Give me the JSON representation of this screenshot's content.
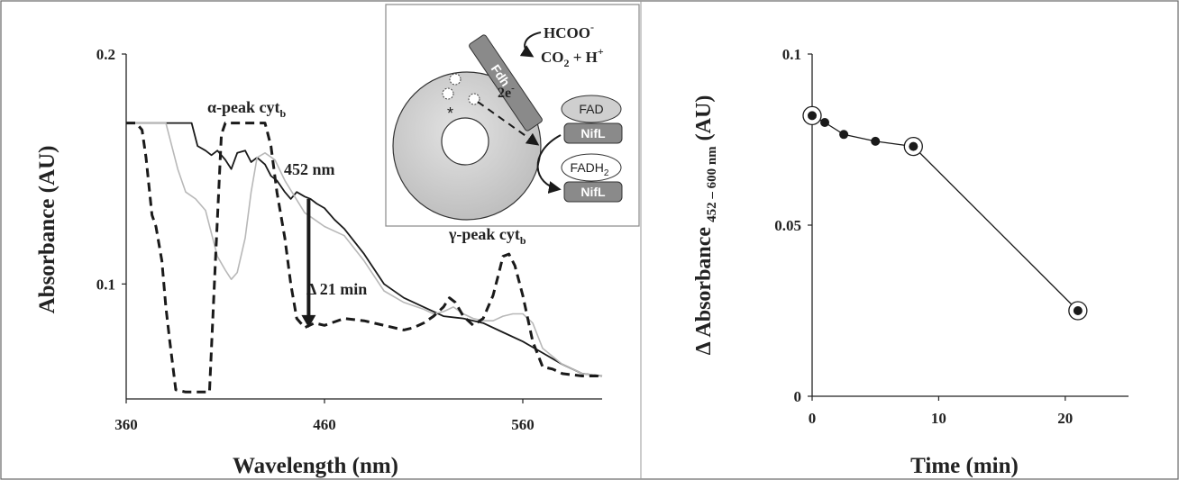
{
  "chart_data": [
    {
      "type": "line",
      "xlabel": "Wavelength (nm)",
      "ylabel": "Absorbance (AU)",
      "xlim": [
        360,
        600
      ],
      "ylim": [
        0.05,
        0.2
      ],
      "x_ticks": [
        {
          "v": 360,
          "label": "360"
        },
        {
          "v": 460,
          "label": "460"
        },
        {
          "v": 560,
          "label": "560"
        }
      ],
      "y_ticks": [
        {
          "v": 0.1,
          "label": "0.1"
        },
        {
          "v": 0.2,
          "label": "0.2"
        }
      ],
      "grid": false,
      "series": [
        {
          "style": "solid-black",
          "color": "#1a1a1a",
          "x": [
            360,
            370,
            380,
            390,
            393,
            396,
            400,
            403,
            406,
            410,
            413,
            416,
            420,
            423,
            426,
            430,
            433,
            436,
            440,
            443,
            446,
            450,
            453,
            456,
            460,
            465,
            470,
            480,
            490,
            500,
            510,
            520,
            530,
            540,
            550,
            560,
            570,
            580,
            590,
            600
          ],
          "y": [
            0.17,
            0.17,
            0.17,
            0.17,
            0.17,
            0.16,
            0.158,
            0.156,
            0.158,
            0.154,
            0.15,
            0.157,
            0.158,
            0.153,
            0.155,
            0.152,
            0.147,
            0.145,
            0.14,
            0.137,
            0.14,
            0.138,
            0.137,
            0.135,
            0.133,
            0.128,
            0.124,
            0.113,
            0.1,
            0.094,
            0.09,
            0.086,
            0.085,
            0.083,
            0.079,
            0.075,
            0.07,
            0.065,
            0.061,
            0.06
          ]
        },
        {
          "style": "solid-gray",
          "color": "#b8b8b8",
          "x": [
            360,
            370,
            380,
            383,
            386,
            390,
            395,
            400,
            403,
            406,
            410,
            413,
            416,
            420,
            423,
            426,
            430,
            435,
            440,
            445,
            450,
            455,
            460,
            470,
            480,
            490,
            500,
            510,
            515,
            520,
            525,
            530,
            535,
            540,
            545,
            550,
            555,
            560,
            565,
            570,
            580,
            590,
            600
          ],
          "y": [
            0.17,
            0.17,
            0.17,
            0.16,
            0.15,
            0.14,
            0.137,
            0.132,
            0.122,
            0.112,
            0.106,
            0.102,
            0.105,
            0.12,
            0.14,
            0.155,
            0.157,
            0.154,
            0.145,
            0.138,
            0.131,
            0.128,
            0.125,
            0.121,
            0.11,
            0.097,
            0.092,
            0.089,
            0.087,
            0.088,
            0.09,
            0.087,
            0.085,
            0.084,
            0.084,
            0.086,
            0.087,
            0.087,
            0.083,
            0.072,
            0.065,
            0.061,
            0.06
          ]
        },
        {
          "style": "dashed-black",
          "color": "#1a1a1a",
          "x": [
            360,
            365,
            368,
            370,
            373,
            375,
            378,
            380,
            382,
            385,
            390,
            395,
            400,
            402,
            405,
            408,
            410,
            415,
            420,
            425,
            430,
            433,
            436,
            440,
            443,
            446,
            450,
            455,
            460,
            470,
            480,
            490,
            500,
            505,
            510,
            515,
            520,
            523,
            526,
            530,
            535,
            540,
            545,
            548,
            550,
            553,
            556,
            560,
            565,
            570,
            575,
            580,
            590,
            600
          ],
          "y": [
            0.17,
            0.17,
            0.167,
            0.155,
            0.13,
            0.125,
            0.11,
            0.09,
            0.075,
            0.054,
            0.053,
            0.053,
            0.053,
            0.053,
            0.11,
            0.165,
            0.17,
            0.17,
            0.17,
            0.17,
            0.17,
            0.16,
            0.14,
            0.12,
            0.1,
            0.085,
            0.081,
            0.083,
            0.082,
            0.085,
            0.084,
            0.082,
            0.08,
            0.081,
            0.083,
            0.086,
            0.09,
            0.094,
            0.092,
            0.086,
            0.082,
            0.085,
            0.095,
            0.105,
            0.112,
            0.113,
            0.108,
            0.095,
            0.075,
            0.064,
            0.063,
            0.061,
            0.06,
            0.06
          ]
        }
      ],
      "annotations": {
        "alpha_peak": "α-peak cyt",
        "alpha_sub": "b",
        "wavelength_452": "452 nm",
        "delta_time": "Δ 21 min",
        "gamma_peak": "γ-peak cyt",
        "gamma_sub": "b"
      },
      "arrow": {
        "x": 452,
        "y_from": 0.137,
        "y_to": 0.081
      }
    },
    {
      "type": "scatter",
      "xlabel": "Time (min)",
      "ylabel_main": "Δ Absorbance",
      "ylabel_sub": "452 – 600 nm",
      "ylabel_unit": "(AU)",
      "xlim": [
        0,
        25
      ],
      "ylim": [
        0,
        0.1
      ],
      "x_ticks": [
        {
          "v": 0,
          "label": "0"
        },
        {
          "v": 10,
          "label": "10"
        },
        {
          "v": 20,
          "label": "20"
        }
      ],
      "y_ticks": [
        {
          "v": 0,
          "label": "0"
        },
        {
          "v": 0.05,
          "label": "0.05"
        },
        {
          "v": 0.1,
          "label": "0.1"
        }
      ],
      "grid": false,
      "series": [
        {
          "connected": true,
          "color": "#1a1a1a",
          "x": [
            0,
            1,
            2.5,
            5,
            8,
            21
          ],
          "y": [
            0.082,
            0.08,
            0.0765,
            0.0745,
            0.073,
            0.025
          ],
          "circled": [
            true,
            false,
            false,
            false,
            true,
            true
          ]
        }
      ]
    }
  ],
  "inset": {
    "formate": "HCOO",
    "formate_charge": "-",
    "co2": "CO",
    "co2_sub": "2",
    "proton_part": " + H",
    "proton_charge": "+",
    "fdh": "Fdh",
    "electrons": "2e",
    "electrons_charge": "-",
    "star": "*",
    "fad": "FAD",
    "nifl_top": "NifL",
    "fadh": "FADH",
    "fadh_sub": "2",
    "nifl_bottom": "NifL"
  },
  "colors": {
    "ink": "#1a1a1a",
    "gray_trace": "#b8b8b8",
    "membrane_gray": "#c8c8c8",
    "protein_gray": "#8a8a8a",
    "fad_gray": "#cfcfcf"
  }
}
